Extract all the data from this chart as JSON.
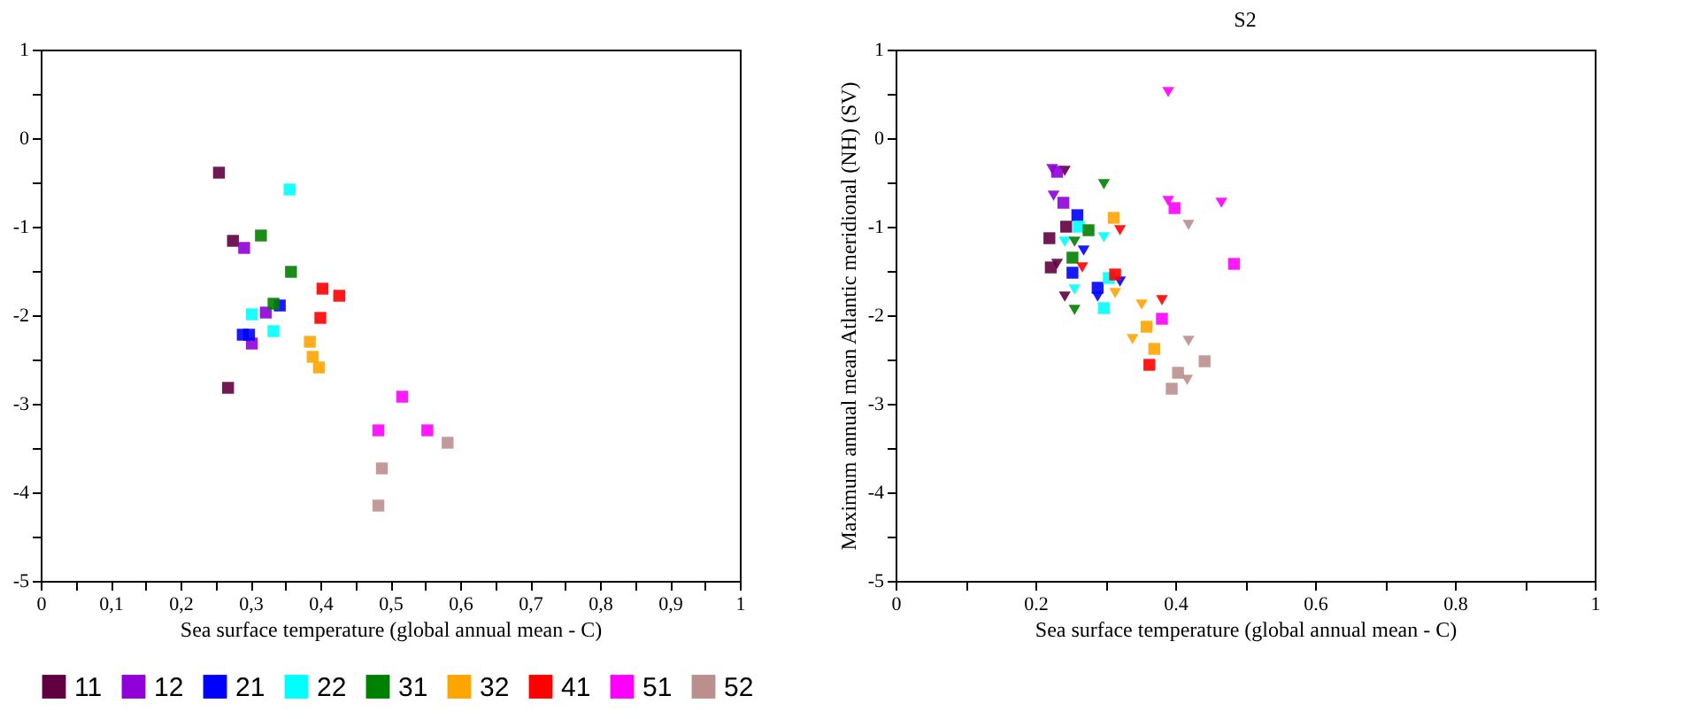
{
  "chart_data": [
    {
      "type": "scatter",
      "xlabel": "Sea surface temperature (global annual mean - C)",
      "legend": "bottom",
      "grid": false,
      "xlim": [
        0,
        1
      ],
      "ylim": [
        -5,
        1
      ],
      "xticks": [
        0,
        {
          "value": 0.05,
          "label": null
        },
        {
          "value": 0.1,
          "label": "0,1"
        },
        {
          "value": 0.15,
          "label": null
        },
        {
          "value": 0.2,
          "label": "0,2"
        },
        {
          "value": 0.25,
          "label": null
        },
        {
          "value": 0.3,
          "label": "0,3"
        },
        {
          "value": 0.35,
          "label": null
        },
        {
          "value": 0.4,
          "label": "0,4"
        },
        {
          "value": 0.45,
          "label": null
        },
        {
          "value": 0.5,
          "label": "0,5"
        },
        {
          "value": 0.55,
          "label": null
        },
        {
          "value": 0.6,
          "label": "0,6"
        },
        {
          "value": 0.65,
          "label": null
        },
        {
          "value": 0.7,
          "label": "0,7"
        },
        {
          "value": 0.75,
          "label": null
        },
        {
          "value": 0.8,
          "label": "0,8"
        },
        {
          "value": 0.85,
          "label": null
        },
        {
          "value": 0.9,
          "label": "0,9"
        },
        {
          "value": 0.95,
          "label": null
        },
        1
      ],
      "yticks": [
        -5,
        {
          "value": -4.5,
          "label": null
        },
        -4,
        {
          "value": -3.5,
          "label": null
        },
        -3,
        {
          "value": -2.5,
          "label": null
        },
        -2,
        {
          "value": -1.5,
          "label": null
        },
        -1,
        {
          "value": -0.5,
          "label": null
        },
        0,
        {
          "value": 0.5,
          "label": null
        },
        1
      ],
      "series": [
        {
          "name": "11",
          "color": "#600040",
          "marker": "square",
          "x": [
            0.275,
            0.255,
            0.268
          ],
          "values": [
            -1.16,
            -0.39,
            -2.82
          ]
        },
        {
          "name": "12",
          "color": "#9000d8",
          "marker": "square",
          "x": [
            0.291,
            0.322,
            0.302
          ],
          "values": [
            -1.24,
            -1.97,
            -2.32
          ]
        },
        {
          "name": "21",
          "color": "#0000ff",
          "marker": "square",
          "x": [
            0.298,
            0.342,
            0.289
          ],
          "values": [
            -2.22,
            -1.89,
            -2.22
          ]
        },
        {
          "name": "22",
          "color": "#00ffff",
          "marker": "square",
          "x": [
            0.302,
            0.356,
            0.333
          ],
          "values": [
            -1.99,
            -0.58,
            -2.18
          ]
        },
        {
          "name": "31",
          "color": "#008000",
          "marker": "square",
          "x": [
            0.315,
            0.358,
            0.333
          ],
          "values": [
            -1.1,
            -1.51,
            -1.87
          ]
        },
        {
          "name": "32",
          "color": "#ffa500",
          "marker": "square",
          "x": [
            0.398,
            0.385,
            0.389
          ],
          "values": [
            -2.59,
            -2.3,
            -2.47
          ]
        },
        {
          "name": "41",
          "color": "#ff0000",
          "marker": "square",
          "x": [
            0.427,
            0.403,
            0.4
          ],
          "values": [
            -1.78,
            -1.7,
            -2.03
          ]
        },
        {
          "name": "51",
          "color": "#ff00ff",
          "marker": "square",
          "x": [
            0.483,
            0.517,
            0.553
          ],
          "values": [
            -3.3,
            -2.92,
            -3.3
          ]
        },
        {
          "name": "52",
          "color": "#bc8f8f",
          "marker": "square",
          "x": [
            0.488,
            0.582,
            0.483
          ],
          "values": [
            -3.73,
            -3.44,
            -4.15
          ]
        }
      ]
    },
    {
      "type": "scatter",
      "title": "S2",
      "xlabel": "Sea surface temperature (global annual mean - C)",
      "ylabel": "Maximum annual mean Atlantic meridional (NH) (SV)",
      "legend": "bottom",
      "grid": false,
      "xlim": [
        0,
        1
      ],
      "ylim": [
        -5,
        1
      ],
      "xticks": [
        0,
        {
          "value": 0.1,
          "label": null
        },
        0.2,
        {
          "value": 0.3,
          "label": null
        },
        0.4,
        {
          "value": 0.5,
          "label": null
        },
        0.6,
        {
          "value": 0.7,
          "label": null
        },
        0.8,
        {
          "value": 0.9,
          "label": null
        },
        1
      ],
      "yticks": [
        -5,
        {
          "value": -4.5,
          "label": null
        },
        -4,
        {
          "value": -3.5,
          "label": null
        },
        -3,
        {
          "value": -2.5,
          "label": null
        },
        -2,
        {
          "value": -1.5,
          "label": null
        },
        -1,
        {
          "value": -0.5,
          "label": null
        },
        0,
        {
          "value": 0.5,
          "label": null
        },
        1
      ],
      "series": [
        {
          "name": "11",
          "color": "#600040",
          "marker": "square",
          "x": [
            0.22,
            0.244,
            0.222
          ],
          "values": [
            -1.13,
            -1.0,
            -1.46
          ]
        },
        {
          "name": "11",
          "color": "#600040",
          "marker": "triangle",
          "x": [
            0.231,
            0.242,
            0.242
          ],
          "values": [
            -1.42,
            -0.37,
            -1.79
          ]
        },
        {
          "name": "12",
          "color": "#9000d8",
          "marker": "square",
          "x": [
            0.24,
            0.231
          ],
          "values": [
            -0.73,
            -0.38
          ]
        },
        {
          "name": "12",
          "color": "#9000d8",
          "marker": "triangle",
          "x": [
            0.224,
            0.226
          ],
          "values": [
            -0.35,
            -0.65
          ]
        },
        {
          "name": "21",
          "color": "#0000ff",
          "marker": "square",
          "x": [
            0.26,
            0.253,
            0.289
          ],
          "values": [
            -0.87,
            -1.52,
            -1.69
          ]
        },
        {
          "name": "21",
          "color": "#0000ff",
          "marker": "triangle",
          "x": [
            0.289,
            0.269,
            0.321
          ],
          "values": [
            -1.79,
            -1.27,
            -1.62
          ]
        },
        {
          "name": "22",
          "color": "#00ffff",
          "marker": "square",
          "x": [
            0.262,
            0.298,
            0.305
          ],
          "values": [
            -1.0,
            -1.92,
            -1.58
          ]
        },
        {
          "name": "22",
          "color": "#00ffff",
          "marker": "triangle",
          "x": [
            0.298,
            0.242,
            0.256
          ],
          "values": [
            -1.12,
            -1.17,
            -1.71
          ]
        },
        {
          "name": "31",
          "color": "#008000",
          "marker": "square",
          "x": [
            0.276,
            0.253
          ],
          "values": [
            -1.04,
            -1.35
          ]
        },
        {
          "name": "31",
          "color": "#008000",
          "marker": "triangle",
          "x": [
            0.256,
            0.298,
            0.256
          ],
          "values": [
            -1.94,
            -0.52,
            -1.17
          ]
        },
        {
          "name": "32",
          "color": "#ffa500",
          "marker": "square",
          "x": [
            0.359,
            0.312,
            0.37
          ],
          "values": [
            -2.13,
            -0.9,
            -2.38
          ]
        },
        {
          "name": "32",
          "color": "#ffa500",
          "marker": "triangle",
          "x": [
            0.352,
            0.314,
            0.339
          ],
          "values": [
            -1.88,
            -1.75,
            -2.27
          ]
        },
        {
          "name": "41",
          "color": "#ff0000",
          "marker": "square",
          "x": [
            0.363,
            0.314
          ],
          "values": [
            -2.56,
            -1.54
          ]
        },
        {
          "name": "41",
          "color": "#ff0000",
          "marker": "triangle",
          "x": [
            0.267,
            0.321,
            0.381
          ],
          "values": [
            -1.46,
            -1.04,
            -1.83
          ]
        },
        {
          "name": "51",
          "color": "#ff00ff",
          "marker": "square",
          "x": [
            0.399,
            0.484,
            0.381
          ],
          "values": [
            -0.79,
            -1.42,
            -2.04
          ]
        },
        {
          "name": "51",
          "color": "#ff00ff",
          "marker": "triangle",
          "x": [
            0.39,
            0.39,
            0.466
          ],
          "values": [
            -0.71,
            0.52,
            -0.73
          ]
        },
        {
          "name": "52",
          "color": "#bc8f8f",
          "marker": "square",
          "x": [
            0.404,
            0.442,
            0.395
          ],
          "values": [
            -2.65,
            -2.52,
            -2.83
          ]
        },
        {
          "name": "52",
          "color": "#bc8f8f",
          "marker": "triangle",
          "x": [
            0.419,
            0.419,
            0.417
          ],
          "values": [
            -0.98,
            -2.29,
            -2.73
          ]
        }
      ]
    }
  ]
}
